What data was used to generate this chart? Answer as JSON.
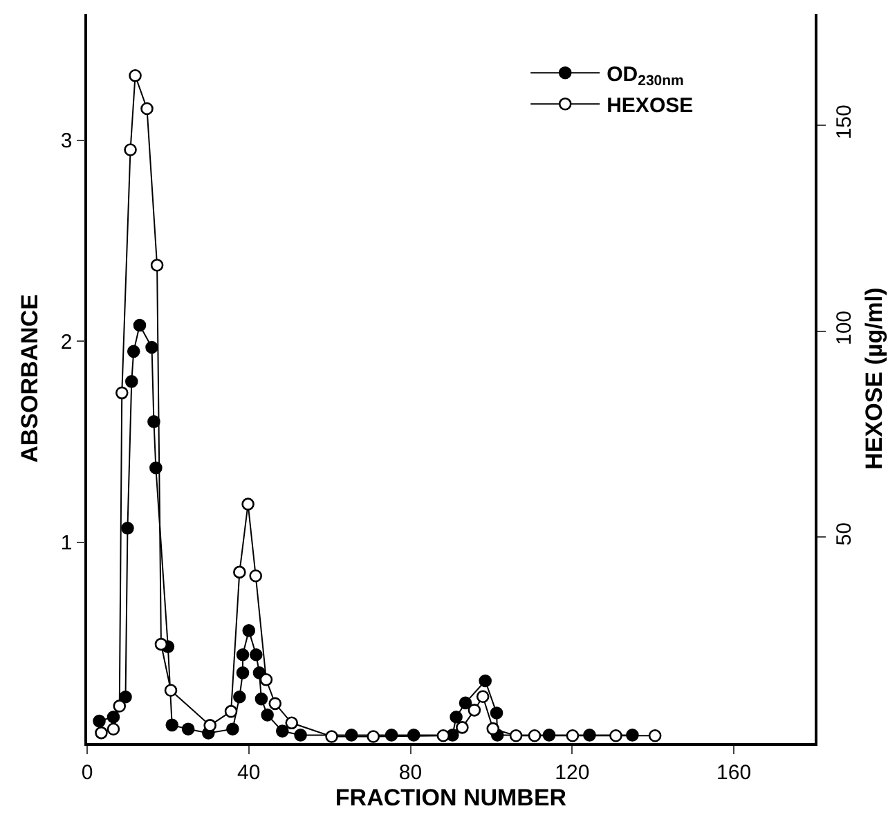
{
  "chart_data": {
    "type": "line",
    "xlabel": "FRACTION NUMBER",
    "ylabel": "ABSORBANCE",
    "y2label": "HEXOSE (µg/ml)",
    "xlim": [
      0,
      180
    ],
    "xticks": [
      0,
      40,
      80,
      120,
      160
    ],
    "ylim": [
      0,
      3.63
    ],
    "yticks": [
      1,
      2,
      3
    ],
    "y2lim": [
      0,
      177
    ],
    "y2ticks": [
      50,
      100,
      150
    ],
    "grid": false,
    "legend": "top right",
    "marker": "circle",
    "series": [
      {
        "name": "OD$_{230nm}$",
        "color": "#000000",
        "x": [
          3,
          6.5,
          9.5,
          10,
          11,
          11.5,
          13,
          16,
          16.5,
          17,
          20,
          21,
          25,
          30,
          36,
          37.7,
          38.5,
          38.5,
          40,
          41.8,
          42.6,
          43.1,
          44.6,
          48.3,
          52.8,
          65.4,
          75.3,
          80.8,
          90.4,
          91.3,
          93.6,
          98.5,
          101.3,
          101.5,
          114.3,
          124.3,
          134.9
        ],
        "values": [
          0.11,
          0.13,
          0.23,
          1.07,
          1.8,
          1.95,
          2.08,
          1.97,
          1.6,
          1.37,
          0.48,
          0.09,
          0.07,
          0.05,
          0.07,
          0.23,
          0.35,
          0.44,
          0.56,
          0.44,
          0.35,
          0.22,
          0.14,
          0.06,
          0.04,
          0.04,
          0.04,
          0.04,
          0.04,
          0.13,
          0.2,
          0.31,
          0.15,
          0.04,
          0.04,
          0.04,
          0.04
        ]
      },
      {
        "name": "HEXOSE",
        "color": "#000000",
        "axis": "y2",
        "x": [
          3.5,
          6.5,
          8,
          8.6,
          10.7,
          11.9,
          14.8,
          17.3,
          18.3,
          20.7,
          30.4,
          35.6,
          37.7,
          39.8,
          41.7,
          44.3,
          46.5,
          50.6,
          60.5,
          70.8,
          88.1,
          92.8,
          95.8,
          97.9,
          100.4,
          106.1,
          110.7,
          120.1,
          130.8,
          140.5
        ],
        "values": [
          2.5,
          3.4,
          9,
          85,
          144,
          162,
          154,
          116,
          24,
          12.8,
          4.3,
          7.7,
          41.5,
          58,
          40.6,
          15.4,
          9.6,
          4.9,
          1.6,
          1.6,
          1.8,
          3.8,
          8,
          11.3,
          3.5,
          1.8,
          1.8,
          1.8,
          1.8,
          1.8
        ]
      }
    ]
  }
}
